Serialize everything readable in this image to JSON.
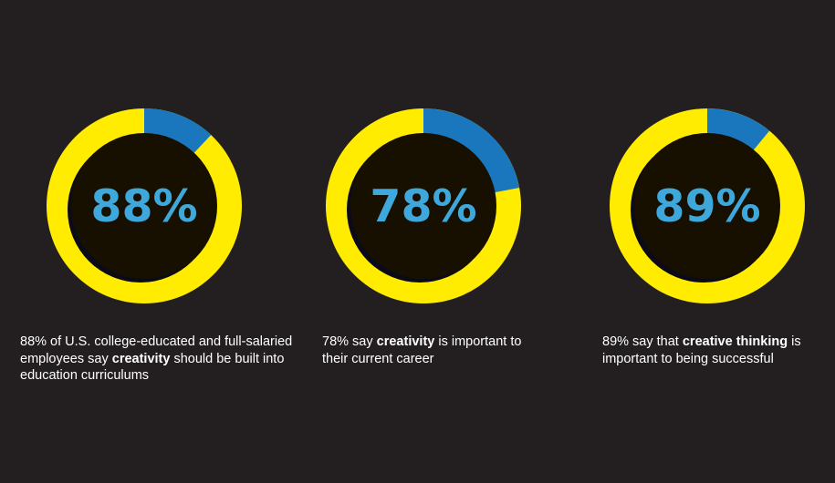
{
  "chart_data": [
    {
      "type": "pie",
      "label": "88%",
      "values": [
        88,
        12
      ],
      "colors": [
        "#ffec00",
        "#1a76bd"
      ],
      "caption": {
        "before": "88% of U.S. college-educated and full-salaried employees say ",
        "bold": "creativity",
        "after": " should be built into education curriculums"
      }
    },
    {
      "type": "pie",
      "label": "78%",
      "values": [
        78,
        22
      ],
      "colors": [
        "#ffec00",
        "#1a76bd"
      ],
      "caption": {
        "before": "78% say ",
        "bold": "creativity",
        "after": " is important to their current career"
      }
    },
    {
      "type": "pie",
      "label": "89%",
      "values": [
        89,
        11
      ],
      "colors": [
        "#ffec00",
        "#1a76bd"
      ],
      "caption": {
        "before": "89% say that ",
        "bold": "creative thinking",
        "after": " is important to being successful"
      }
    }
  ],
  "colors": {
    "background": "#231f20",
    "ring_main": "#ffec00",
    "ring_highlight": "#1a76bd",
    "center_fill": "#171000",
    "center_shadow": "#0b0a18",
    "percent_text": "#3ea8dc",
    "caption_text": "#ffffff"
  }
}
